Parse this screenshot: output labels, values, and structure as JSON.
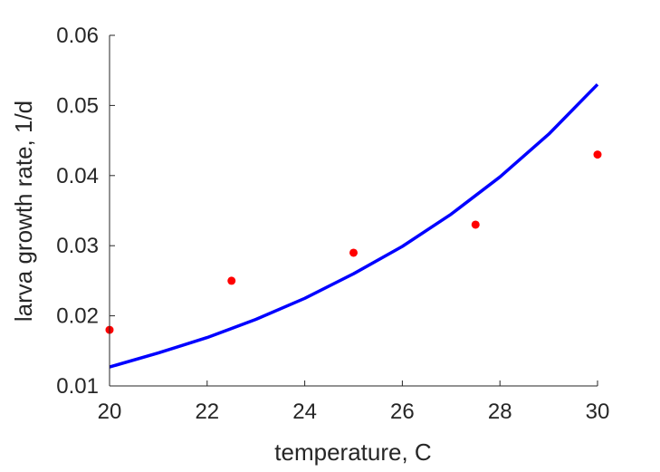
{
  "chart_data": {
    "type": "scatter",
    "title": "",
    "xlabel": "temperature, C",
    "ylabel": "larva growth rate, 1/d",
    "xlim": [
      20,
      30
    ],
    "ylim": [
      0.01,
      0.06
    ],
    "xticks": [
      20,
      22,
      24,
      26,
      28,
      30
    ],
    "xtick_labels": [
      "20",
      "22",
      "24",
      "26",
      "28",
      "30"
    ],
    "yticks": [
      0.01,
      0.02,
      0.03,
      0.04,
      0.05,
      0.06
    ],
    "ytick_labels": [
      "0.01",
      "0.02",
      "0.03",
      "0.04",
      "0.05",
      "0.06"
    ],
    "grid": false,
    "series": [
      {
        "kind": "scatter",
        "color": "#ff0000",
        "x": [
          20,
          22.5,
          25,
          27.5,
          30
        ],
        "y": [
          0.018,
          0.025,
          0.029,
          0.033,
          0.043
        ]
      },
      {
        "kind": "line",
        "color": "#0000ff",
        "x": [
          20,
          21,
          22,
          23,
          24,
          25,
          26,
          27,
          28,
          29,
          30
        ],
        "y": [
          0.0127,
          0.0147,
          0.0169,
          0.0195,
          0.0225,
          0.026,
          0.0299,
          0.0345,
          0.0398,
          0.0459,
          0.053
        ]
      }
    ]
  }
}
